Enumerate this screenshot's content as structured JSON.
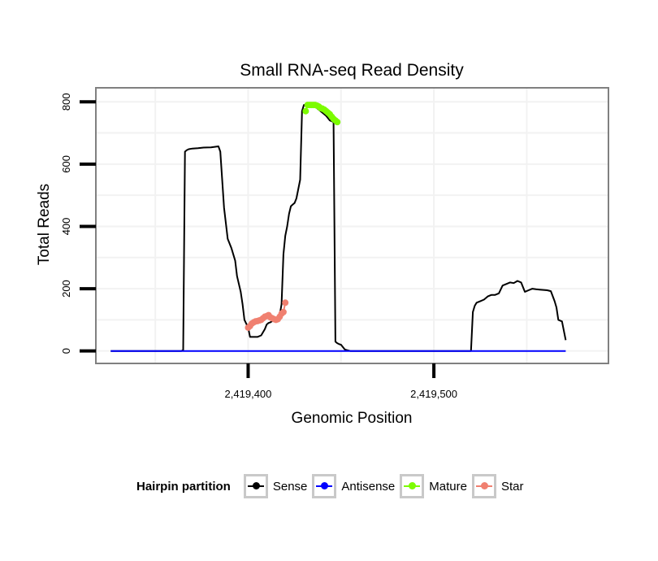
{
  "chart_data": {
    "type": "line",
    "title": "Small RNA-seq Read Density",
    "xlabel": "Genomic Position",
    "ylabel": "Total Reads",
    "xlim": [
      2419318,
      2419594
    ],
    "ylim": [
      -40,
      845
    ],
    "x_ticks": [
      2419400,
      2419500
    ],
    "x_tick_labels": [
      "2,419,400",
      "2,419,500"
    ],
    "y_ticks": [
      0,
      200,
      400,
      600,
      800
    ],
    "y_tick_labels": [
      "0",
      "200",
      "400",
      "600",
      "800"
    ],
    "grid": true,
    "legend": {
      "title": "Hairpin partition",
      "position": "bottom",
      "entries": [
        "Sense",
        "Antisense",
        "Mature",
        "Star"
      ]
    },
    "series": [
      {
        "name": "Sense",
        "color": "#000000",
        "points": false,
        "x": [
          2419326,
          2419364,
          2419365,
          2419366,
          2419367,
          2419368,
          2419370,
          2419373,
          2419376,
          2419380,
          2419384,
          2419385,
          2419386,
          2419387,
          2419389,
          2419391,
          2419393,
          2419394,
          2419396,
          2419397,
          2419398,
          2419400,
          2419401,
          2419402,
          2419403,
          2419405,
          2419407,
          2419409,
          2419410,
          2419411,
          2419412,
          2419413,
          2419414,
          2419415,
          2419416,
          2419417,
          2419418,
          2419419,
          2419420,
          2419421,
          2419422,
          2419423,
          2419424,
          2419425,
          2419426,
          2419427,
          2419428,
          2419429,
          2419430,
          2419431,
          2419432,
          2419433,
          2419434,
          2419436,
          2419438,
          2419440,
          2419442,
          2419444,
          2419446,
          2419447,
          2419448,
          2419449,
          2419450,
          2419452,
          2419453,
          2419455,
          2419460,
          2419480,
          2419500,
          2419520,
          2419521,
          2419522,
          2419523,
          2419525,
          2419527,
          2419529,
          2419531,
          2419533,
          2419535,
          2419537,
          2419539,
          2419541,
          2419543,
          2419545,
          2419547,
          2419549,
          2419551,
          2419553,
          2419555,
          2419557,
          2419559,
          2419561,
          2419563,
          2419565,
          2419566,
          2419567,
          2419569,
          2419571
        ],
        "y": [
          0,
          0,
          3,
          640,
          645,
          648,
          650,
          651,
          653,
          654,
          657,
          640,
          550,
          460,
          360,
          330,
          290,
          240,
          190,
          150,
          100,
          75,
          45,
          45,
          45,
          45,
          50,
          70,
          85,
          90,
          92,
          96,
          100,
          105,
          110,
          115,
          150,
          310,
          370,
          400,
          440,
          465,
          470,
          475,
          490,
          520,
          550,
          770,
          790,
          790,
          790,
          790,
          790,
          785,
          775,
          765,
          755,
          740,
          735,
          30,
          25,
          22,
          20,
          5,
          3,
          0,
          0,
          0,
          0,
          0,
          125,
          145,
          155,
          160,
          165,
          175,
          180,
          180,
          185,
          210,
          215,
          220,
          218,
          225,
          220,
          190,
          195,
          200,
          198,
          197,
          196,
          195,
          192,
          160,
          140,
          100,
          95,
          35
        ]
      },
      {
        "name": "Antisense",
        "color": "#0000ff",
        "points": false,
        "x": [
          2419326,
          2419571
        ],
        "y": [
          0,
          0
        ]
      },
      {
        "name": "Mature",
        "color": "#7cfc00",
        "points": true,
        "x": [
          2419431,
          2419432,
          2419433,
          2419434,
          2419435,
          2419436,
          2419437,
          2419438,
          2419439,
          2419440,
          2419441,
          2419442,
          2419443,
          2419444,
          2419445,
          2419446,
          2419447,
          2419448
        ],
        "y": [
          770,
          790,
          790,
          790,
          790,
          790,
          788,
          785,
          780,
          778,
          775,
          770,
          765,
          760,
          752,
          745,
          740,
          735
        ]
      },
      {
        "name": "Star",
        "color": "#f08070",
        "points": true,
        "x": [
          2419400,
          2419401,
          2419402,
          2419403,
          2419404,
          2419405,
          2419406,
          2419407,
          2419408,
          2419409,
          2419410,
          2419411,
          2419412,
          2419413,
          2419414,
          2419415,
          2419416,
          2419417,
          2419418,
          2419419,
          2419420
        ],
        "y": [
          75,
          80,
          88,
          92,
          95,
          96,
          98,
          100,
          105,
          110,
          112,
          115,
          108,
          105,
          102,
          100,
          102,
          110,
          120,
          125,
          155
        ]
      }
    ]
  }
}
